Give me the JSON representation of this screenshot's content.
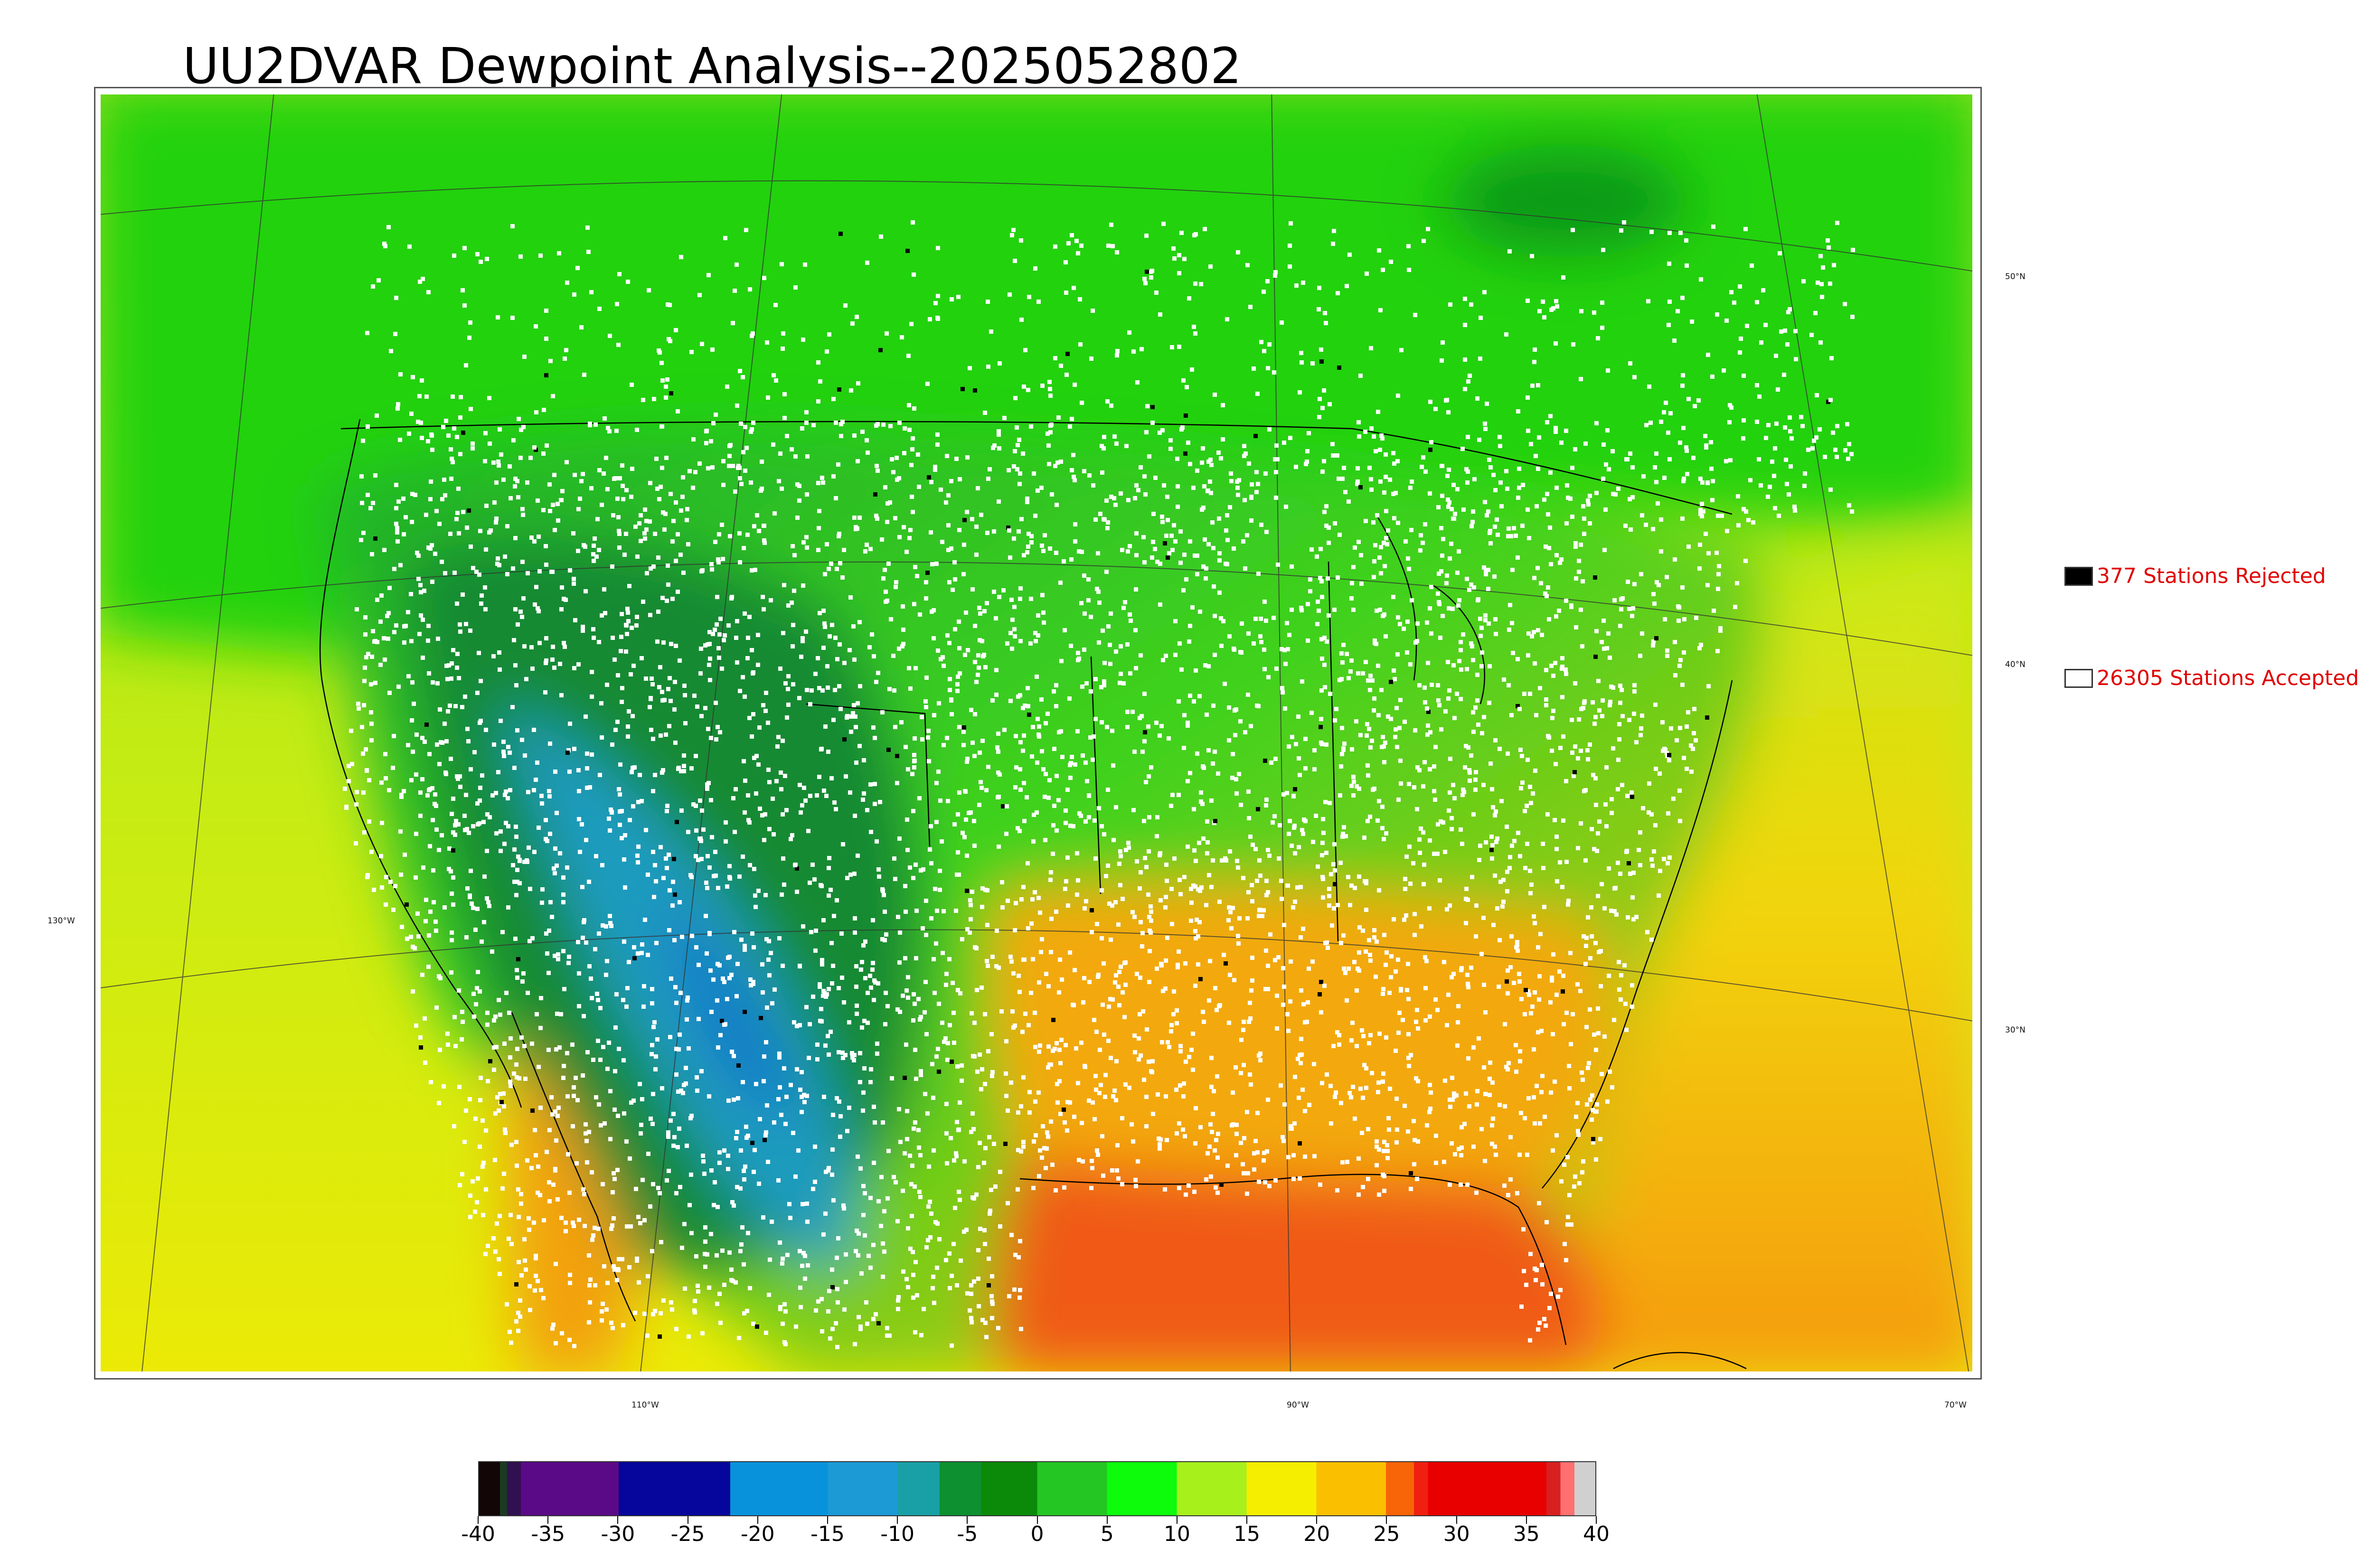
{
  "title": "UU2DVAR Dewpoint Analysis--2025052802",
  "map": {
    "lat_labels": [
      "50°N",
      "40°N",
      "30°N"
    ],
    "lon_labels": [
      "130°W",
      "110°W",
      "90°W",
      "70°W"
    ],
    "colors": {
      "pacific": "#c8ee1a",
      "pacific_south": "#e6e608",
      "canada": "#27d60d",
      "rockies": "#159a2d",
      "plains": "#aee82a",
      "southeast": "#f2a90e",
      "gulf": "#f25a14",
      "atlantic_south": "#f6a511",
      "desert_blue": "#2a8fc8",
      "station_accepted": "#ffffff",
      "station_rejected": "#000000",
      "coastline": "#000000"
    }
  },
  "legend": {
    "rejected": "377 Stations Rejected",
    "accepted": "26305 Stations Accepted"
  },
  "colorbar": {
    "ticks": [
      "-40",
      "-35",
      "-30",
      "-25",
      "-20",
      "-15",
      "-10",
      "-5",
      "0",
      "5",
      "10",
      "15",
      "20",
      "25",
      "30",
      "35",
      "40"
    ],
    "min": -40,
    "max": 40,
    "segments": [
      {
        "from": -40,
        "to": -38.5,
        "color": "#120606"
      },
      {
        "from": -38.5,
        "to": -38,
        "color": "#1c3a22"
      },
      {
        "from": -38,
        "to": -37,
        "color": "#301050"
      },
      {
        "from": -37,
        "to": -30,
        "color": "#5a0a86"
      },
      {
        "from": -30,
        "to": -22,
        "color": "#06069c"
      },
      {
        "from": -22,
        "to": -15,
        "color": "#0892dc"
      },
      {
        "from": -15,
        "to": -10,
        "color": "#1b9ad6"
      },
      {
        "from": -10,
        "to": -7,
        "color": "#18a0a6"
      },
      {
        "from": -7,
        "to": -4,
        "color": "#0c9030"
      },
      {
        "from": -4,
        "to": 0,
        "color": "#0a8a08"
      },
      {
        "from": 0,
        "to": 5,
        "color": "#24c624"
      },
      {
        "from": 5,
        "to": 10,
        "color": "#0cfc0c"
      },
      {
        "from": 10,
        "to": 15,
        "color": "#a8f01c"
      },
      {
        "from": 15,
        "to": 20,
        "color": "#f6ee00"
      },
      {
        "from": 20,
        "to": 25,
        "color": "#fac000"
      },
      {
        "from": 25,
        "to": 27,
        "color": "#f86408"
      },
      {
        "from": 27,
        "to": 28,
        "color": "#f02010"
      },
      {
        "from": 28,
        "to": 36.5,
        "color": "#e80000"
      },
      {
        "from": 36.5,
        "to": 37.5,
        "color": "#d82020"
      },
      {
        "from": 37.5,
        "to": 38.5,
        "color": "#ff7070"
      },
      {
        "from": 38.5,
        "to": 40,
        "color": "#d0d0d0"
      }
    ]
  }
}
